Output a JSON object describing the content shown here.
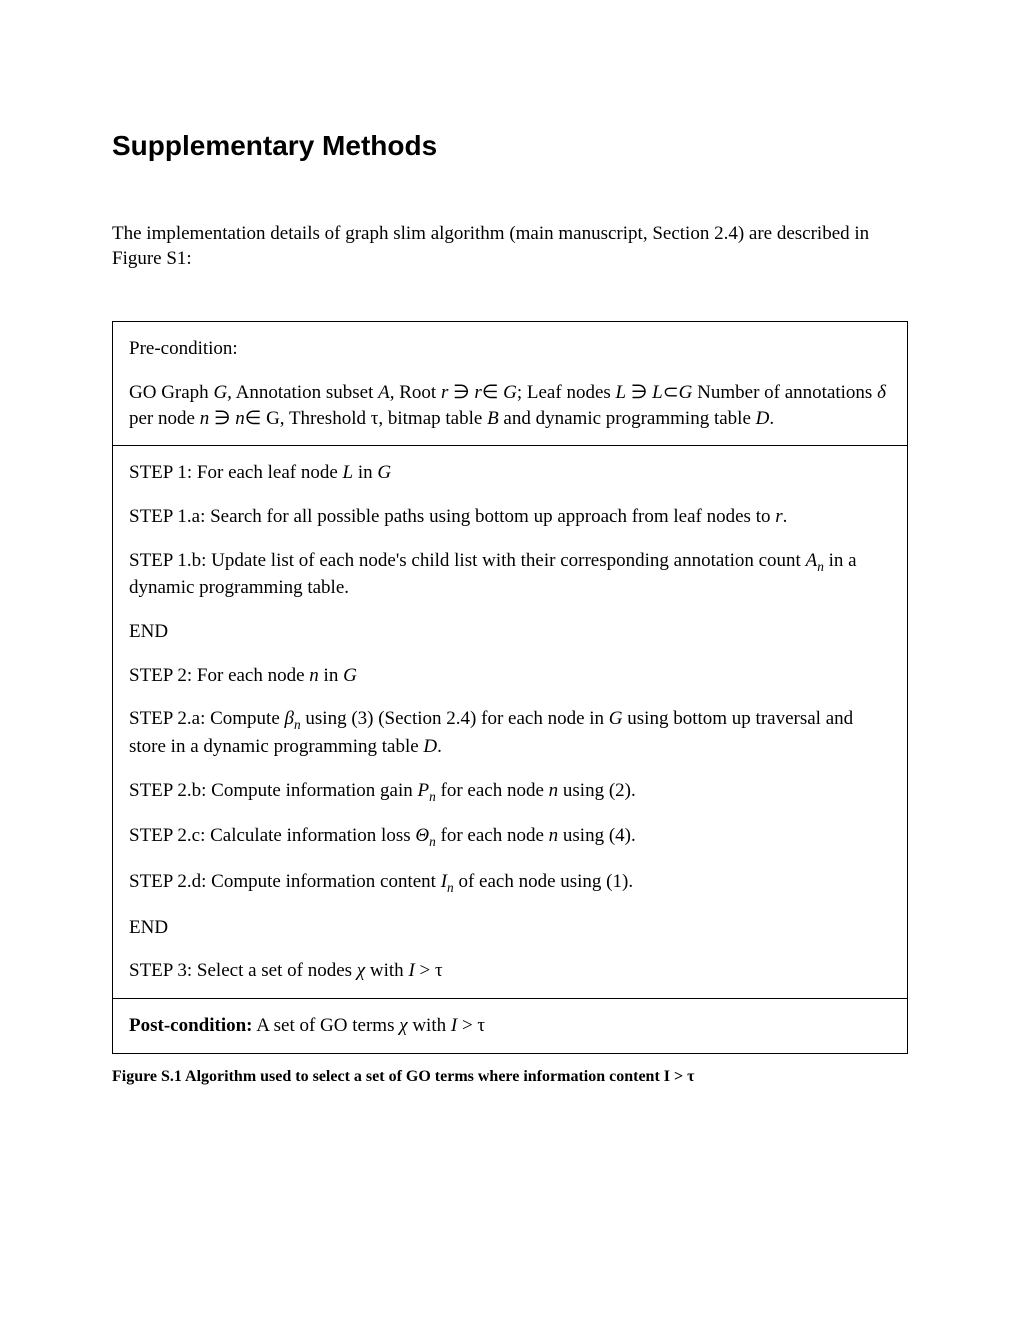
{
  "title": "Supplementary Methods",
  "intro": "The implementation details of graph slim algorithm (main manuscript, Section 2.4) are described in Figure S1:",
  "precondition": {
    "label": "Pre-condition:",
    "text_html": "GO Graph <span class='it'>G,</span> Annotation subset <span class='it'>A,</span> Root <span class='it'>r</span> ∋ <span class='it'>r</span>∈ <span class='it'>G</span>; Leaf nodes <span class='it'>L</span> ∋ <span class='it'>L</span>⊂<span class='it'>G</span> Number of annotations <span class='it'>δ</span> per node <span class='it'>n</span> ∋ <span class='it'>n</span>∈ G, Threshold τ, bitmap table <span class='it'>B</span> and dynamic programming table <span class='it'>D</span>."
  },
  "steps": [
    "STEP 1: For each leaf node <span class='it'>L</span> in <span class='it'>G</span>",
    "STEP 1.a:  Search for all possible paths using bottom up approach from leaf nodes to <span class='it'>r</span>.",
    "STEP 1.b: Update list of each node's child list with their corresponding annotation count <span class='it'>A<span class='sub'>n</span></span> in a dynamic programming table.",
    "END",
    "STEP 2: For each node <span class='it'>n</span> in <span class='it'>G</span>",
    "STEP 2.a: Compute <span class='it'>β<span class='sub'>n</span></span> using (3) (Section 2.4) for each node in <span class='it'>G</span> using bottom up traversal and store in a dynamic programming table <span class='it'>D</span>.",
    "STEP 2.b: Compute information gain <span class='it'>P<span class='sub'>n</span></span> for each node <span class='it'>n</span> using (2).",
    "STEP 2.c: Calculate information loss <span class='it'>Θ<span class='sub'>n</span></span> for each node <span class='it'>n</span> using (4).",
    "STEP 2.d: Compute information content <span class='it'>I<span class='sub'>n</span></span> of each node using (1).",
    "END",
    "STEP 3: Select a set of nodes <span class='it'>χ</span> with <span class='it'>I</span> > τ"
  ],
  "postcondition_html": "<span class='bold'>Post-condition:</span> A set of GO terms <span class='it'>χ</span> with <span class='it'>I</span> > τ",
  "caption": "Figure S.1 Algorithm used to select a set of GO terms where information content I > τ",
  "colors": {
    "background": "#ffffff",
    "text": "#000000",
    "border": "#000000"
  },
  "fonts": {
    "heading_family": "Arial",
    "body_family": "Times New Roman",
    "heading_size_pt": 21,
    "body_size_pt": 14,
    "caption_size_pt": 12
  }
}
